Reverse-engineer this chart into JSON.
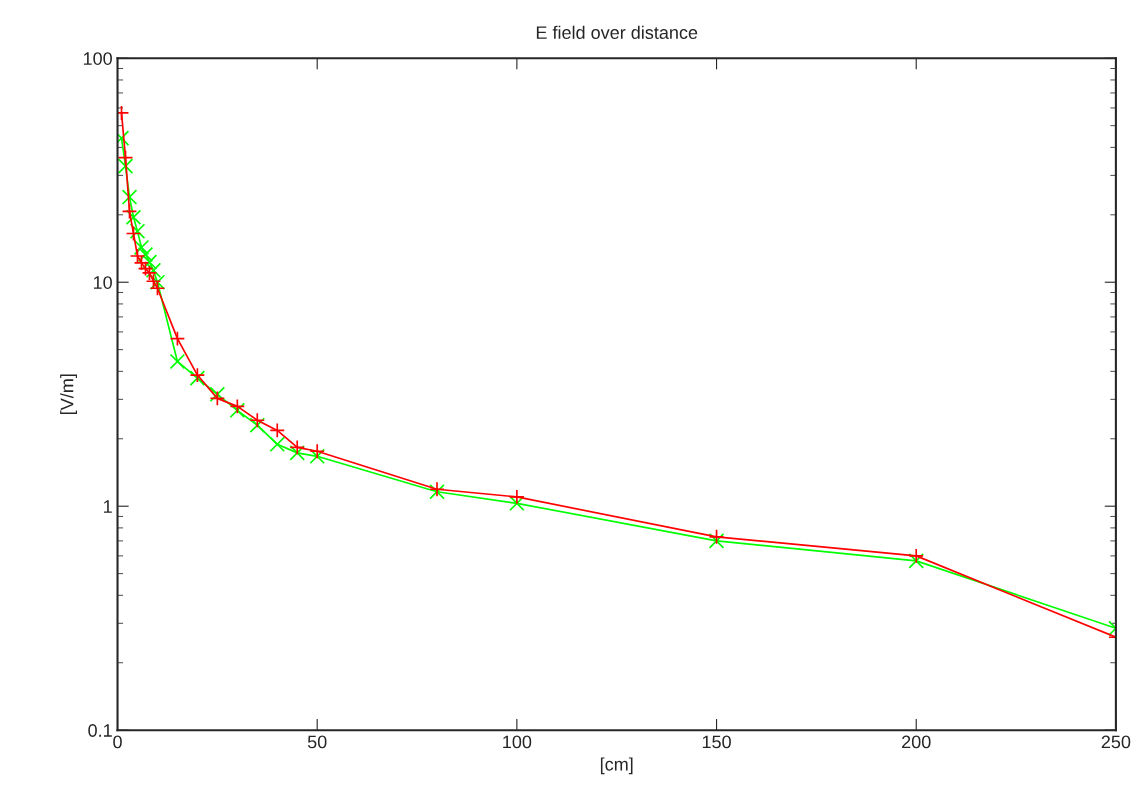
{
  "chart_data": {
    "type": "line",
    "title": "E field over distance",
    "xlabel": "[cm]",
    "ylabel": "[V/m]",
    "x": [
      1,
      2,
      3,
      4,
      5,
      6,
      7,
      8,
      9,
      10,
      15,
      20,
      25,
      30,
      35,
      40,
      45,
      50,
      80,
      100,
      150,
      200,
      250
    ],
    "series": [
      {
        "color": "#ff0000",
        "marker": "plus",
        "values": [
          57,
          36,
          20.7,
          16.5,
          13.1,
          12.2,
          11.5,
          11,
          10.1,
          9.4,
          5.6,
          3.85,
          3.03,
          2.79,
          2.42,
          2.18,
          1.83,
          1.76,
          1.19,
          1.1,
          0.73,
          0.6,
          0.26
        ]
      },
      {
        "color": "#00ff00",
        "marker": "cross",
        "values": [
          44,
          33,
          24,
          19.5,
          16.9,
          14.3,
          13.3,
          12.3,
          11.3,
          10,
          4.43,
          3.73,
          3.16,
          2.68,
          2.3,
          1.89,
          1.73,
          1.67,
          1.16,
          1.03,
          0.7,
          0.57,
          0.285
        ]
      }
    ],
    "log": "y",
    "xlim": [
      0,
      250
    ],
    "xticks": [
      0,
      50,
      100,
      150,
      200,
      250
    ],
    "ylim": [
      0.1,
      100
    ],
    "yticks": [
      0.1,
      1,
      10,
      100
    ],
    "grid": false,
    "legend": false,
    "line_style": "solid"
  }
}
